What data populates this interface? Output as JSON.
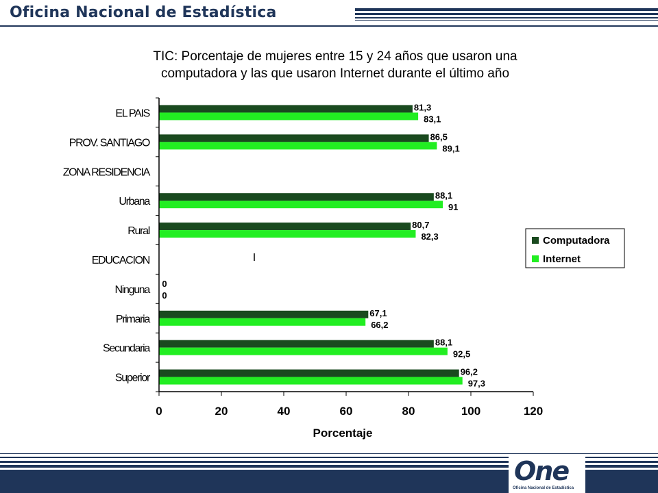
{
  "header": {
    "title": "Oficina Nacional de Estadística"
  },
  "logo": {
    "mark": "One",
    "caption": "Oficina Nacional de Estadística"
  },
  "colors": {
    "navy": "#1f3559",
    "computadora": "#1a4a1f",
    "internet": "#22ee22"
  },
  "chart_data": {
    "type": "bar",
    "orientation": "horizontal",
    "title_lines": [
      "TIC: Porcentaje de mujeres entre 15 y 24 años que usaron una",
      "computadora y las que usaron Internet durante el último año"
    ],
    "xlabel": "Porcentaje",
    "ylabel": "",
    "xlim": [
      0,
      120
    ],
    "xticks": [
      0,
      20,
      40,
      60,
      80,
      100,
      120
    ],
    "grid": false,
    "legend_position": "right",
    "categories": [
      "EL PAIS",
      "PROV. SANTIAGO",
      "ZONA RESIDENCIA",
      "Urbana",
      "Rural",
      "EDUCACION",
      "Ninguna",
      "Primaria",
      "Secundaria",
      "Superior"
    ],
    "series": [
      {
        "name": "Computadora",
        "color": "#1a4a1f",
        "values": [
          81.3,
          86.5,
          null,
          88.1,
          80.7,
          null,
          0,
          67.1,
          88.1,
          96.2
        ],
        "labels": [
          "81,3",
          "86,5",
          "",
          "88,1",
          "80,7",
          "",
          "0",
          "67,1",
          "88,1",
          "96,2"
        ]
      },
      {
        "name": "Internet",
        "color": "#22ee22",
        "values": [
          83.1,
          89.1,
          null,
          91,
          82.3,
          null,
          0,
          66.2,
          92.5,
          97.3
        ],
        "labels": [
          "83,1",
          "89,1",
          "",
          "91",
          "82,3",
          "",
          "0",
          "66,2",
          "92,5",
          "97,3"
        ]
      }
    ]
  }
}
